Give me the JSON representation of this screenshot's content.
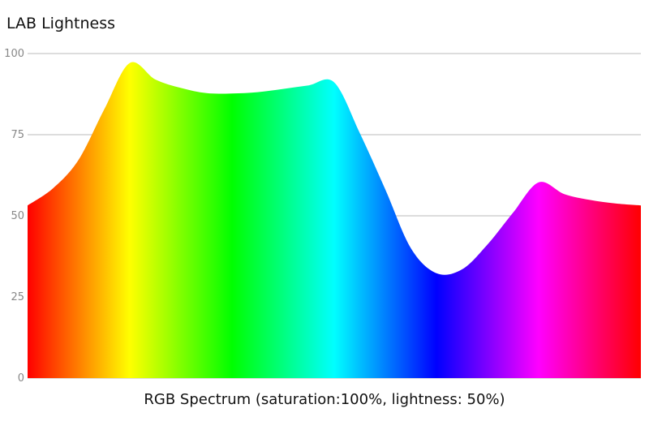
{
  "chart_data": {
    "type": "area",
    "title": "LAB Lightness",
    "xlabel": "RGB Spectrum (saturation:100%, lightness: 50%)",
    "ylabel": "",
    "ylim": [
      0,
      100
    ],
    "yticks": [
      0,
      25,
      50,
      75,
      100
    ],
    "grid": true,
    "x_unit": "hue (degrees)",
    "x": [
      0,
      15,
      30,
      45,
      60,
      75,
      90,
      105,
      120,
      135,
      150,
      165,
      180,
      195,
      210,
      225,
      240,
      255,
      270,
      285,
      300,
      315,
      330,
      345,
      360
    ],
    "series": [
      {
        "values": [
          53.2,
          58.5,
          67.3,
          82.8,
          97.1,
          92.0,
          89.4,
          87.8,
          87.7,
          88.1,
          89.1,
          90.2,
          91.1,
          75.5,
          58.1,
          40.0,
          32.3,
          33.5,
          41.2,
          51.0,
          60.3,
          56.7,
          54.9,
          53.8,
          53.2
        ]
      }
    ],
    "colors": {
      "gridline": "#bbbbbb",
      "tick_label": "#888888",
      "text": "#111111"
    }
  }
}
